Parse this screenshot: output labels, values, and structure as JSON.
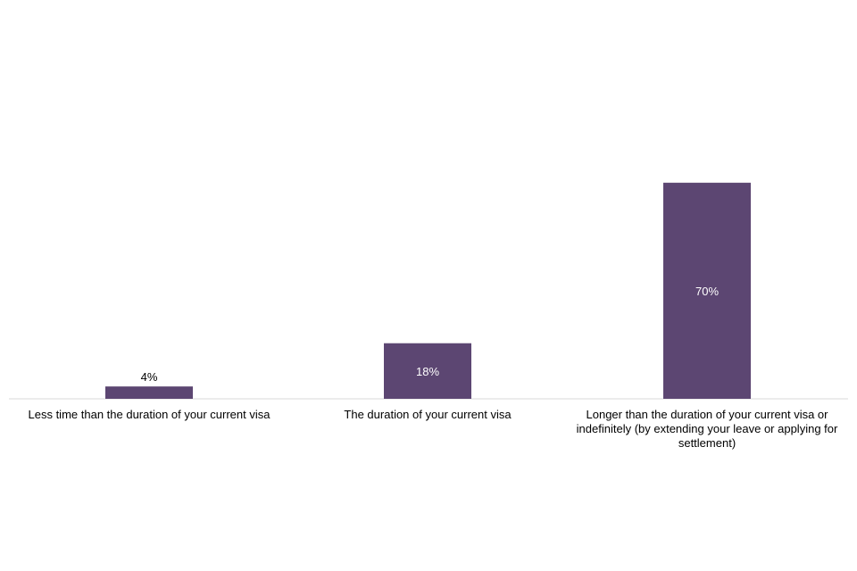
{
  "chart_data": {
    "type": "bar",
    "title": "",
    "xlabel": "",
    "ylabel": "",
    "ylim": [
      0,
      100
    ],
    "grid": false,
    "categories": [
      "Less time than the duration of your current visa",
      "The duration of your current visa",
      "Longer than the duration of your current visa or indefinitely (by extending your leave or applying for settlement)"
    ],
    "values": [
      4,
      18,
      70
    ],
    "data_labels": [
      "4%",
      "18%",
      "70%"
    ],
    "bar_color": "#5c4672",
    "axis_color": "#d9d9d9"
  }
}
